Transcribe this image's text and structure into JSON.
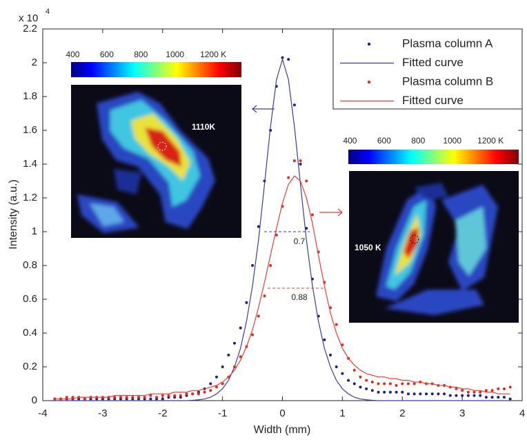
{
  "chart_data": {
    "type": "scatter",
    "xlabel": "Width (mm)",
    "ylabel": "Intensity (a.u.)",
    "y_multiplier": "x 10",
    "y_multiplier_exponent": "4",
    "xlim": [
      -4,
      4
    ],
    "xticks": [
      -4,
      -3,
      -2,
      -1,
      0,
      1,
      2,
      3,
      4
    ],
    "ylim": [
      0,
      2.2
    ],
    "yticks": [
      0,
      0.2,
      0.4,
      0.6,
      0.8,
      1,
      1.2,
      1.4,
      1.6,
      1.8,
      2,
      2.2
    ],
    "legend": "upper right",
    "x": [
      -3.8,
      -3.7,
      -3.6,
      -3.5,
      -3.4,
      -3.3,
      -3.2,
      -3.1,
      -3.0,
      -2.9,
      -2.8,
      -2.7,
      -2.6,
      -2.5,
      -2.4,
      -2.3,
      -2.2,
      -2.1,
      -2.0,
      -1.9,
      -1.8,
      -1.7,
      -1.6,
      -1.5,
      -1.4,
      -1.3,
      -1.2,
      -1.1,
      -1.0,
      -0.9,
      -0.8,
      -0.7,
      -0.6,
      -0.5,
      -0.4,
      -0.3,
      -0.2,
      -0.1,
      0,
      0.1,
      0.2,
      0.3,
      0.4,
      0.5,
      0.6,
      0.7,
      0.8,
      0.9,
      1.0,
      1.1,
      1.2,
      1.3,
      1.4,
      1.5,
      1.6,
      1.7,
      1.8,
      1.9,
      2.0,
      2.1,
      2.2,
      2.3,
      2.4,
      2.5,
      2.6,
      2.7,
      2.8,
      2.9,
      3.0,
      3.1,
      3.2,
      3.3,
      3.4,
      3.5,
      3.6,
      3.7,
      3.8
    ],
    "series": [
      {
        "name": "Plasma column A",
        "style": "dots",
        "color": "#1c1f87",
        "values": [
          0.01,
          0.01,
          0.01,
          0.01,
          0.01,
          0.01,
          0.01,
          0.01,
          0.01,
          0.01,
          0.01,
          0.01,
          0.01,
          0.01,
          0.01,
          0.01,
          0.01,
          0.01,
          0.01,
          0.02,
          0.02,
          0.02,
          0.03,
          0.04,
          0.05,
          0.07,
          0.1,
          0.14,
          0.2,
          0.27,
          0.34,
          0.43,
          0.58,
          0.8,
          1.03,
          1.3,
          1.6,
          1.86,
          2.03,
          2.02,
          1.75,
          1.4,
          1.02,
          0.72,
          0.5,
          0.36,
          0.27,
          0.2,
          0.16,
          0.12,
          0.1,
          0.08,
          0.07,
          0.06,
          0.05,
          0.05,
          0.05,
          0.05,
          0.05,
          0.04,
          0.04,
          0.04,
          0.04,
          0.04,
          0.04,
          0.04,
          0.03,
          0.03,
          0.03,
          0.03,
          0.03,
          0.03,
          0.02,
          0.02,
          0.02,
          0.02,
          0.01
        ]
      },
      {
        "name": "Fitted curve",
        "style": "line",
        "color": "#3a3d99",
        "values": [
          0,
          0,
          0,
          0,
          0,
          0,
          0,
          0,
          0,
          0,
          0,
          0,
          0,
          0,
          0,
          0,
          0,
          0,
          0,
          0,
          0,
          0,
          0,
          0.002,
          0.005,
          0.01,
          0.02,
          0.04,
          0.07,
          0.12,
          0.2,
          0.31,
          0.47,
          0.68,
          0.95,
          1.28,
          1.62,
          1.9,
          2.02,
          1.9,
          1.62,
          1.28,
          0.95,
          0.68,
          0.47,
          0.31,
          0.2,
          0.12,
          0.07,
          0.04,
          0.02,
          0.01,
          0.005,
          0.002,
          0,
          0,
          0,
          0,
          0,
          0,
          0,
          0,
          0,
          0,
          0,
          0,
          0,
          0,
          0,
          0,
          0,
          0,
          0,
          0,
          0,
          0,
          0
        ]
      },
      {
        "name": "Plasma column B",
        "style": "dots",
        "color": "#e8261c",
        "values": [
          0.01,
          0.01,
          0.02,
          0.02,
          0.02,
          0.01,
          0.02,
          0.02,
          0.02,
          0.02,
          0.02,
          0.02,
          0.02,
          0.02,
          0.02,
          0.02,
          0.03,
          0.02,
          0.03,
          0.03,
          0.03,
          0.03,
          0.04,
          0.04,
          0.04,
          0.05,
          0.06,
          0.08,
          0.1,
          0.14,
          0.2,
          0.26,
          0.32,
          0.39,
          0.5,
          0.62,
          0.8,
          0.98,
          1.15,
          1.32,
          1.42,
          1.42,
          1.3,
          1.1,
          0.88,
          0.7,
          0.55,
          0.45,
          0.33,
          0.25,
          0.18,
          0.14,
          0.12,
          0.11,
          0.1,
          0.1,
          0.1,
          0.09,
          0.1,
          0.1,
          0.1,
          0.11,
          0.1,
          0.1,
          0.09,
          0.09,
          0.08,
          0.07,
          0.06,
          0.05,
          0.05,
          0.05,
          0.06,
          0.06,
          0.07,
          0.07,
          0.08
        ]
      },
      {
        "name": "Fitted curve",
        "style": "line",
        "color": "#ee3b30",
        "values": [
          0.01,
          0.01,
          0.01,
          0.01,
          0.02,
          0.02,
          0.02,
          0.02,
          0.02,
          0.02,
          0.03,
          0.03,
          0.03,
          0.03,
          0.03,
          0.03,
          0.04,
          0.04,
          0.04,
          0.04,
          0.05,
          0.05,
          0.05,
          0.06,
          0.06,
          0.07,
          0.08,
          0.09,
          0.11,
          0.14,
          0.18,
          0.24,
          0.32,
          0.42,
          0.55,
          0.7,
          0.86,
          1.02,
          1.17,
          1.28,
          1.33,
          1.3,
          1.2,
          1.05,
          0.86,
          0.68,
          0.52,
          0.4,
          0.31,
          0.25,
          0.21,
          0.18,
          0.16,
          0.15,
          0.14,
          0.14,
          0.13,
          0.13,
          0.12,
          0.12,
          0.11,
          0.11,
          0.1,
          0.1,
          0.09,
          0.09,
          0.08,
          0.08,
          0.07,
          0.07,
          0.06,
          0.06,
          0.05,
          0.05,
          0.04,
          0.04,
          0.04
        ]
      }
    ],
    "annotations": [
      "0.7",
      "0.88"
    ],
    "insets": [
      {
        "label": "1110K",
        "colorbar_lim": [
          390,
          1390
        ],
        "colorbar_ticks": [
          400,
          600,
          800,
          1000,
          {
            "value": 1200,
            "label": "1200 K"
          }
        ]
      },
      {
        "label": "1050 K",
        "colorbar_lim": [
          390,
          1390
        ],
        "colorbar_ticks": [
          400,
          600,
          800,
          1000,
          {
            "value": 1200,
            "label": "1200 K"
          }
        ]
      }
    ]
  }
}
